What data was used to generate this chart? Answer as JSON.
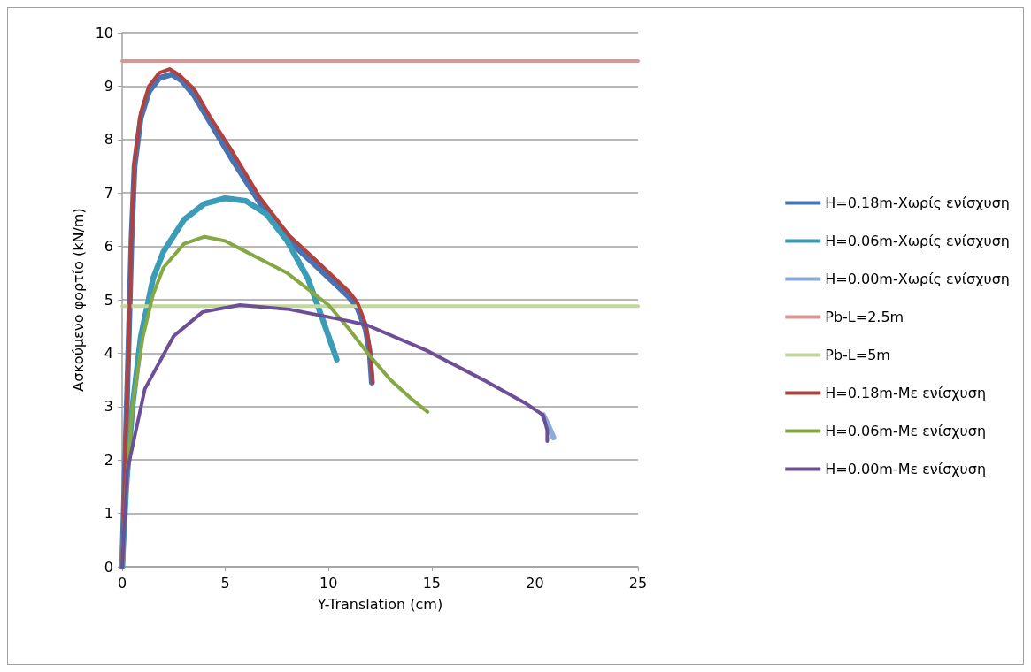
{
  "chart_data": {
    "type": "line",
    "xlabel": "Y-Translation (cm)",
    "ylabel": "Ασκούμενο φορτίο (kN/m)",
    "xlim": [
      0,
      25
    ],
    "xticks": [
      0,
      5,
      10,
      15,
      20,
      25
    ],
    "ylim": [
      0,
      10
    ],
    "yticks": [
      0,
      1,
      2,
      3,
      4,
      5,
      6,
      7,
      8,
      9,
      10
    ],
    "grid": "y",
    "legend": "right",
    "marker": "none",
    "line_style": "solid",
    "series": [
      {
        "name": "H=0.18m-Χωρίς ενίσχυση",
        "color": "#4a72b0",
        "x": [
          0,
          0.15,
          0.3,
          0.45,
          0.6,
          0.9,
          1.3,
          1.8,
          2.4,
          2.9,
          3.5,
          4.3,
          5.3,
          6.7,
          8.1,
          9.5,
          11,
          11.4,
          11.8,
          12,
          12.1
        ],
        "values": [
          0,
          2,
          4,
          6.1,
          7.5,
          8.4,
          8.9,
          9.15,
          9.22,
          9.1,
          8.82,
          8.3,
          7.65,
          6.8,
          6.1,
          5.6,
          5.05,
          4.85,
          4.45,
          4,
          3.45
        ]
      },
      {
        "name": "H=0.06m-Χωρίς ενίσχυση",
        "color": "#3a9cb6",
        "x": [
          0,
          0.2,
          0.5,
          0.9,
          1.5,
          2,
          3,
          4,
          5,
          6,
          7,
          8,
          9,
          9.7,
          10.4
        ],
        "values": [
          0,
          1.5,
          3,
          4.3,
          5.4,
          5.9,
          6.5,
          6.8,
          6.9,
          6.85,
          6.6,
          6.1,
          5.4,
          4.65,
          3.88
        ]
      },
      {
        "name": "H=0.00m-Χωρίς ενίσχυση",
        "color": "#8eaad8",
        "x": [
          20.4,
          20.7,
          20.9
        ],
        "values": [
          2.84,
          2.6,
          2.42
        ]
      },
      {
        "name": "Pb-L=2.5m",
        "color": "#d99694",
        "x": [
          0,
          25
        ],
        "values": [
          9.47,
          9.47
        ]
      },
      {
        "name": "Pb-L=5m",
        "color": "#c3d69b",
        "x": [
          0,
          25
        ],
        "values": [
          4.88,
          4.88
        ]
      },
      {
        "name": "H=0.18m-Με ενίσχυση",
        "color": "#b0413e",
        "x": [
          0,
          0.15,
          0.3,
          0.45,
          0.6,
          0.9,
          1.3,
          1.8,
          2.3,
          2.8,
          3.5,
          4.3,
          5.3,
          6.7,
          8.1,
          9.5,
          11,
          11.4,
          11.8,
          12,
          12.15
        ],
        "values": [
          0,
          2,
          4,
          6.2,
          7.6,
          8.5,
          9,
          9.25,
          9.32,
          9.2,
          8.94,
          8.4,
          7.8,
          6.9,
          6.2,
          5.7,
          5.15,
          4.95,
          4.55,
          4.1,
          3.45
        ]
      },
      {
        "name": "H=0.06m-Με ενίσχυση",
        "color": "#86a844",
        "x": [
          0,
          0.2,
          0.5,
          1,
          1.5,
          2,
          3,
          4,
          5,
          6,
          7,
          8,
          9,
          10,
          11,
          12,
          13,
          14,
          14.8
        ],
        "values": [
          0,
          1.5,
          3,
          4.3,
          5.1,
          5.6,
          6.05,
          6.18,
          6.1,
          5.9,
          5.7,
          5.5,
          5.2,
          4.9,
          4.45,
          3.95,
          3.5,
          3.15,
          2.9
        ]
      },
      {
        "name": "H=0.00m-Με ενίσχυση",
        "color": "#6c4f96",
        "x": [
          0,
          0.25,
          1.1,
          2.5,
          3.9,
          5.7,
          8.1,
          11,
          11.9,
          14.75,
          17.5,
          19.6,
          20.4,
          20.6,
          20.6
        ],
        "values": [
          0,
          1.8,
          3.33,
          4.32,
          4.77,
          4.9,
          4.82,
          4.6,
          4.52,
          4.05,
          3.5,
          3.05,
          2.84,
          2.56,
          2.35
        ]
      }
    ]
  }
}
